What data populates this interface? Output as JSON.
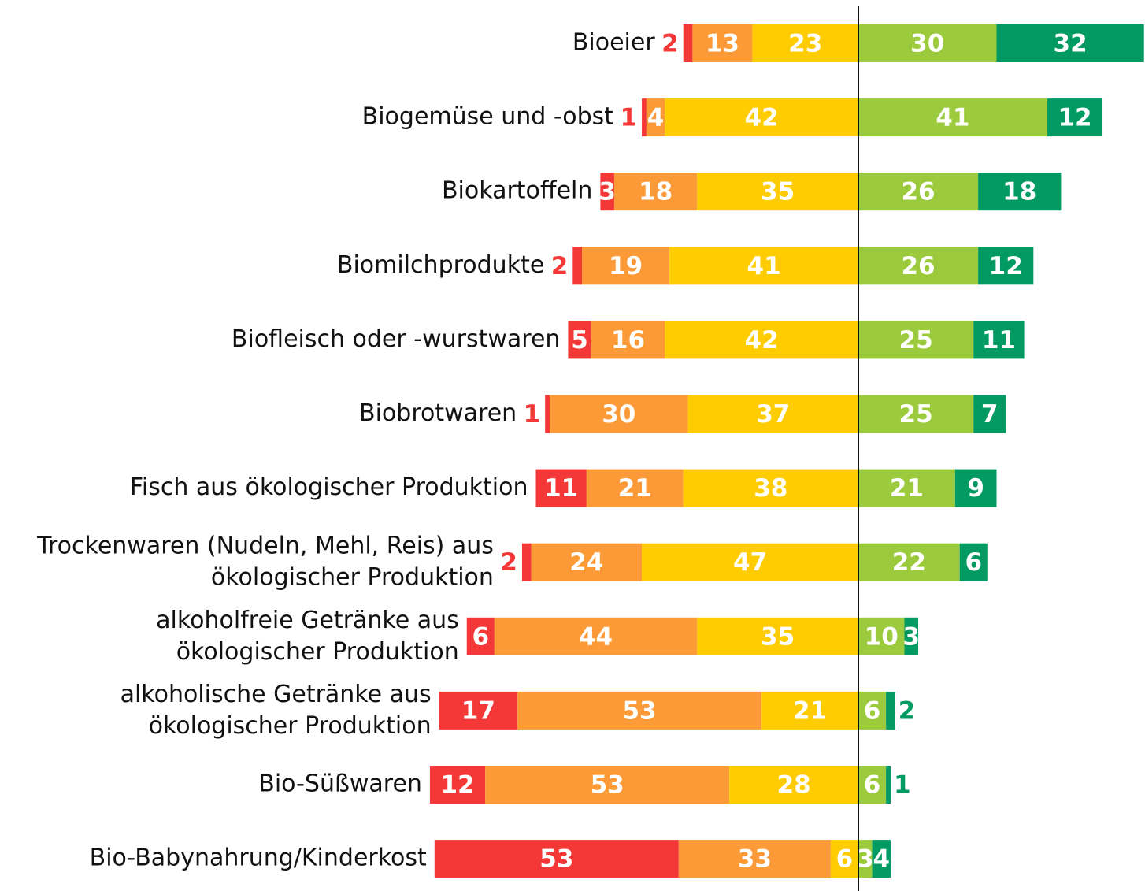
{
  "chart_data": {
    "type": "diverging-bar",
    "categories": [
      "Bioeier",
      "Biogemüse und -obst",
      "Biokartoffeln",
      "Biomilchprodukte",
      "Biofleisch oder  -wurstwaren",
      "Biobrotwaren",
      "Fisch aus ökologischer Produktion",
      "Trockenwaren (Nudeln, Mehl, Reis) aus\nökologischer Produktion",
      "alkoholfreie Getränke aus\nökologischer Produktion",
      "alkoholische Getränke aus\nökologischer Produktion",
      "Bio-Süßwaren",
      "Bio-Babynahrung/Kinderkost"
    ],
    "series": [
      {
        "color": "#f43838",
        "side": "left",
        "values": [
          2,
          1,
          3,
          2,
          5,
          1,
          11,
          2,
          6,
          17,
          12,
          53
        ]
      },
      {
        "color": "#fb9a36",
        "side": "left",
        "values": [
          13,
          4,
          18,
          19,
          16,
          30,
          21,
          24,
          44,
          53,
          53,
          33
        ]
      },
      {
        "color": "#fecc00",
        "side": "left",
        "values": [
          23,
          42,
          35,
          41,
          42,
          37,
          38,
          47,
          35,
          21,
          28,
          6
        ]
      },
      {
        "color": "#9bcb3c",
        "side": "right",
        "values": [
          30,
          41,
          26,
          26,
          25,
          25,
          21,
          22,
          10,
          6,
          6,
          3
        ]
      },
      {
        "color": "#009a62",
        "side": "right",
        "values": [
          32,
          12,
          18,
          12,
          11,
          7,
          9,
          6,
          3,
          2,
          1,
          4
        ]
      }
    ]
  }
}
